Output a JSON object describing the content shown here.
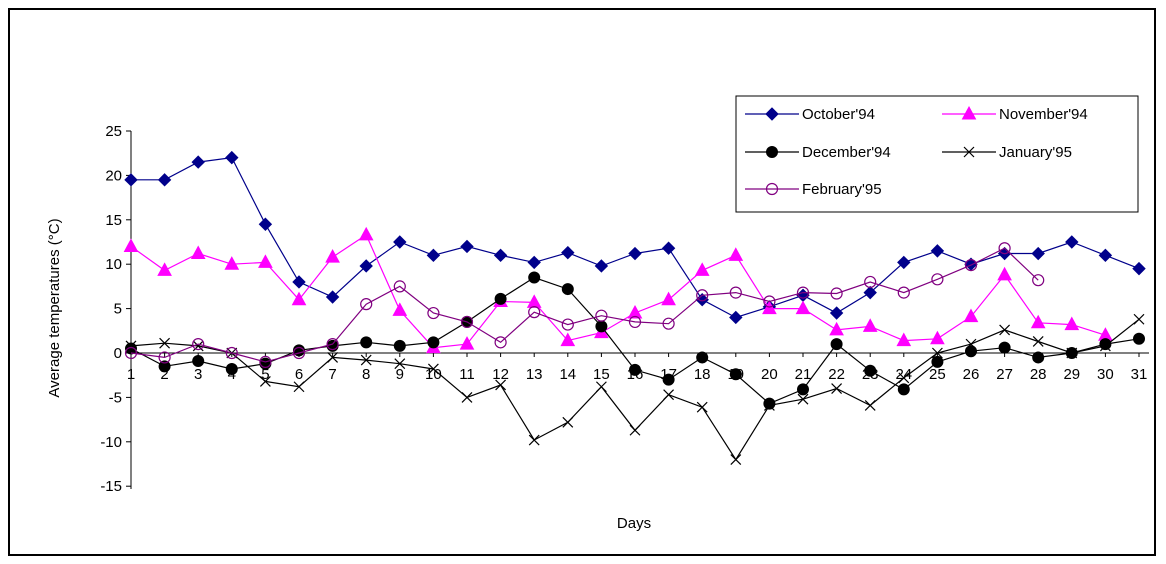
{
  "chart_data": {
    "type": "line",
    "xlabel": "Days",
    "ylabel": "Average temperatures (°C)",
    "ylim": [
      -15,
      25
    ],
    "yticks": [
      25,
      20,
      15,
      10,
      5,
      0,
      -5,
      -10,
      -15
    ],
    "x": [
      1,
      2,
      3,
      4,
      5,
      6,
      7,
      8,
      9,
      10,
      11,
      12,
      13,
      14,
      15,
      16,
      17,
      18,
      19,
      20,
      21,
      22,
      23,
      24,
      25,
      26,
      27,
      28,
      29,
      30,
      31
    ],
    "grid": false,
    "legend_position": "top-right",
    "series": [
      {
        "name": "October'94",
        "color": "#00008b",
        "marker": "diamond",
        "values": [
          19.5,
          19.5,
          21.5,
          22,
          14.5,
          8,
          6.3,
          9.8,
          12.5,
          11,
          12,
          11,
          10.2,
          11.3,
          9.8,
          11.2,
          11.8,
          6,
          4,
          5.2,
          6.5,
          4.5,
          6.8,
          10.2,
          11.5,
          10,
          11.2,
          11.2,
          12.5,
          11,
          9.5
        ]
      },
      {
        "name": "November'94",
        "color": "#ff00ff",
        "marker": "triangle",
        "values": [
          12,
          9.3,
          11.2,
          10,
          10.2,
          6,
          10.8,
          13.3,
          4.8,
          0.6,
          1,
          5.8,
          5.7,
          1.4,
          2.3,
          4.5,
          6,
          9.3,
          11,
          5,
          5,
          2.6,
          3,
          1.4,
          1.6,
          4.1,
          8.8,
          3.4,
          3.2,
          2,
          null
        ]
      },
      {
        "name": "December'94",
        "color": "#000000",
        "marker": "circle-filled",
        "values": [
          0.5,
          -1.5,
          -0.9,
          -1.8,
          -1.2,
          0.3,
          0.8,
          1.2,
          0.8,
          1.2,
          3.5,
          6.1,
          8.5,
          7.2,
          3,
          -1.9,
          -3,
          -0.5,
          -2.4,
          -5.7,
          -4.1,
          1,
          -2,
          -4.1,
          -1,
          0.2,
          0.6,
          -0.5,
          0,
          1,
          1.6
        ]
      },
      {
        "name": "January'95",
        "color": "#000000",
        "marker": "x",
        "values": [
          0.8,
          1.1,
          0.8,
          0,
          -3.2,
          -3.8,
          -0.5,
          -0.8,
          -1.2,
          -1.8,
          -5,
          -3.6,
          -9.8,
          -7.8,
          -3.8,
          -8.7,
          -4.7,
          -6.1,
          -12,
          -5.9,
          -5.2,
          -4,
          -5.9,
          -2.8,
          0,
          1,
          2.6,
          1.3,
          0,
          0.8,
          3.8
        ]
      },
      {
        "name": "February'95",
        "color": "#800080",
        "marker": "circle-open",
        "values": [
          0,
          -0.5,
          1,
          0,
          -1,
          0,
          1,
          5.5,
          7.5,
          4.5,
          3.5,
          1.2,
          4.6,
          3.2,
          4.2,
          3.5,
          3.3,
          6.5,
          6.8,
          5.8,
          6.8,
          6.7,
          8,
          6.8,
          8.3,
          9.9,
          11.8,
          8.2,
          null,
          null,
          null
        ]
      }
    ]
  }
}
